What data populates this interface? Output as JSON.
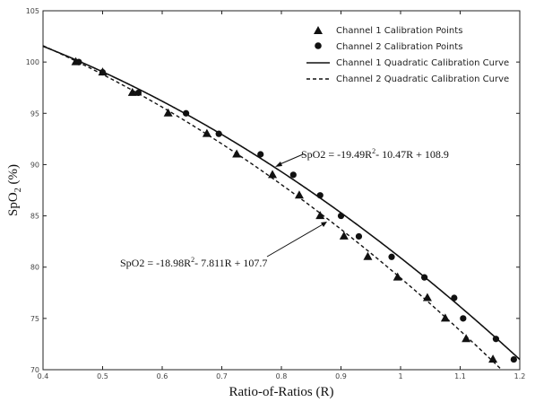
{
  "chart_data": {
    "type": "scatter",
    "title": "",
    "xlabel": "Ratio-of-Ratios (R)",
    "ylabel": "SpO2 (%)",
    "xlim": [
      0.4,
      1.2
    ],
    "ylim": [
      70,
      105
    ],
    "xticks": [
      "0.4",
      "0.5",
      "0.6",
      "0.7",
      "0.8",
      "0.9",
      "1",
      "1.1",
      "1.2"
    ],
    "yticks": [
      "70",
      "75",
      "80",
      "85",
      "90",
      "95",
      "100",
      "105"
    ],
    "grid": false,
    "legend_position": "top-right",
    "series": [
      {
        "name": "Channel 1 Calibration Points",
        "kind": "scatter",
        "marker": "triangle",
        "x": [
          0.455,
          0.5,
          0.55,
          0.61,
          0.675,
          0.725,
          0.785,
          0.83,
          0.865,
          0.905,
          0.945,
          0.995,
          1.045,
          1.075,
          1.11,
          1.155
        ],
        "y": [
          100,
          99,
          97,
          95,
          93,
          91,
          89,
          87,
          85,
          83,
          81,
          79,
          77,
          75,
          73,
          71
        ]
      },
      {
        "name": "Channel 2 Calibration Points",
        "kind": "scatter",
        "marker": "circle",
        "x": [
          0.46,
          0.5,
          0.56,
          0.64,
          0.695,
          0.765,
          0.82,
          0.865,
          0.9,
          0.93,
          0.985,
          1.04,
          1.09,
          1.105,
          1.16,
          1.19
        ],
        "y": [
          100,
          99,
          97,
          95,
          93,
          91,
          89,
          87,
          85,
          83,
          81,
          79,
          77,
          75,
          73,
          71
        ]
      },
      {
        "name": "Channel 1 Quadratic Calibration Curve",
        "kind": "line",
        "dash": "solid",
        "coefficients": [
          -18.98,
          -7.811,
          107.7
        ]
      },
      {
        "name": "Channel 2 Quadratic Calibration Curve",
        "kind": "line",
        "dash": "dashed",
        "coefficients": [
          -19.49,
          -10.47,
          108.9
        ]
      }
    ],
    "annotations": [
      {
        "lead": "SpO2 = -19.49R",
        "sup": "2",
        "tail": "- 10.47R + 108.9"
      },
      {
        "lead": "SpO2 = -18.98R",
        "sup": "2",
        "tail": "- 7.811R + 107.7"
      }
    ]
  }
}
